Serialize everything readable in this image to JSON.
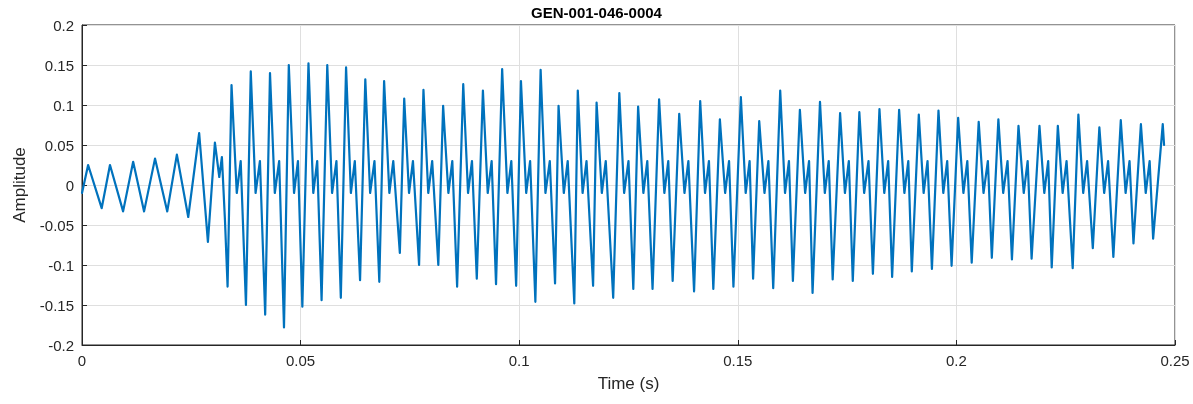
{
  "chart_data": {
    "type": "line",
    "title": "GEN-001-046-0004",
    "xlabel": "Time (s)",
    "ylabel": "Amplitude",
    "xlim": [
      0,
      0.25
    ],
    "xticks": [
      0,
      0.05,
      0.1,
      0.15,
      0.2,
      0.25
    ],
    "ylim": [
      -0.2,
      0.2
    ],
    "yticks": [
      -0.2,
      -0.15,
      -0.1,
      -0.05,
      0,
      0.05,
      0.1,
      0.15,
      0.2
    ],
    "grid": true,
    "marker": "none",
    "line_style": "solid",
    "series": [
      {
        "color": "#0072bd",
        "x": [
          0,
          0.0014,
          0.0045,
          0.0064,
          0.0094,
          0.0117,
          0.0142,
          0.0167,
          0.0195,
          0.0217,
          0.0243,
          0.0268,
          0.0288,
          0.0304,
          0.0314,
          0.032,
          0.0327,
          0.0333,
          0.0342,
          0.0354,
          0.0363,
          0.0375,
          0.0386,
          0.0397,
          0.0407,
          0.0419,
          0.043,
          0.0441,
          0.0451,
          0.0462,
          0.0473,
          0.0485,
          0.0494,
          0.0504,
          0.0518,
          0.0529,
          0.0538,
          0.0548,
          0.0561,
          0.0572,
          0.0582,
          0.0592,
          0.0604,
          0.0615,
          0.0624,
          0.0636,
          0.0648,
          0.0659,
          0.0669,
          0.068,
          0.0691,
          0.0703,
          0.0712,
          0.0727,
          0.0737,
          0.0748,
          0.0757,
          0.0771,
          0.0781,
          0.0792,
          0.0801,
          0.0815,
          0.0826,
          0.0838,
          0.0847,
          0.0858,
          0.0872,
          0.0883,
          0.0892,
          0.0903,
          0.0917,
          0.0928,
          0.0937,
          0.0947,
          0.0961,
          0.0973,
          0.0982,
          0.0993,
          0.1004,
          0.1016,
          0.1025,
          0.1037,
          0.1049,
          0.106,
          0.107,
          0.1082,
          0.109,
          0.1102,
          0.1111,
          0.1126,
          0.1134,
          0.1145,
          0.1154,
          0.1169,
          0.1177,
          0.1189,
          0.1198,
          0.1215,
          0.1229,
          0.124,
          0.125,
          0.1261,
          0.1272,
          0.1284,
          0.1293,
          0.1305,
          0.132,
          0.1332,
          0.1341,
          0.1351,
          0.1366,
          0.1378,
          0.1387,
          0.14,
          0.1414,
          0.1425,
          0.1434,
          0.1444,
          0.1459,
          0.1471,
          0.148,
          0.149,
          0.1507,
          0.1518,
          0.1527,
          0.1535,
          0.1549,
          0.1561,
          0.157,
          0.1581,
          0.1597,
          0.1608,
          0.1617,
          0.1626,
          0.1642,
          0.1654,
          0.1663,
          0.1671,
          0.1688,
          0.1699,
          0.1708,
          0.1717,
          0.1734,
          0.1745,
          0.1754,
          0.1763,
          0.1778,
          0.1789,
          0.1799,
          0.1809,
          0.1824,
          0.1835,
          0.1844,
          0.1853,
          0.1869,
          0.1881,
          0.189,
          0.1898,
          0.1914,
          0.1925,
          0.1934,
          0.1944,
          0.1959,
          0.197,
          0.1979,
          0.1989,
          0.2004,
          0.2016,
          0.2025,
          0.2035,
          0.2051,
          0.2062,
          0.2072,
          0.2081,
          0.2096,
          0.2107,
          0.2117,
          0.2127,
          0.2142,
          0.2154,
          0.2163,
          0.2172,
          0.219,
          0.2201,
          0.221,
          0.2218,
          0.2232,
          0.2243,
          0.2252,
          0.2266,
          0.2279,
          0.229,
          0.2299,
          0.2312,
          0.2327,
          0.2338,
          0.2347,
          0.2359,
          0.2376,
          0.2387,
          0.2396,
          0.2405,
          0.2422,
          0.2433,
          0.2442,
          0.245,
          0.2472,
          0.2475
        ],
        "values": [
          -0.01,
          0.025,
          -0.029,
          0.025,
          -0.033,
          0.029,
          -0.033,
          0.033,
          -0.033,
          0.038,
          -0.04,
          0.065,
          -0.071,
          0.053,
          0.01,
          0.035,
          -0.044,
          -0.127,
          0.125,
          -0.01,
          0.03,
          -0.15,
          0.142,
          -0.01,
          0.03,
          -0.162,
          0.14,
          -0.01,
          0.03,
          -0.178,
          0.15,
          -0.01,
          0.03,
          -0.152,
          0.152,
          -0.01,
          0.03,
          -0.144,
          0.15,
          -0.01,
          0.03,
          -0.141,
          0.147,
          -0.01,
          0.03,
          -0.119,
          0.132,
          -0.01,
          0.03,
          -0.121,
          0.13,
          -0.01,
          0.03,
          -0.085,
          0.108,
          -0.01,
          0.03,
          -0.1,
          0.119,
          -0.01,
          0.03,
          -0.1,
          0.099,
          -0.01,
          0.03,
          -0.127,
          0.126,
          -0.01,
          0.03,
          -0.117,
          0.118,
          -0.01,
          0.03,
          -0.124,
          0.145,
          -0.01,
          0.03,
          -0.126,
          0.13,
          -0.01,
          0.03,
          -0.146,
          0.144,
          -0.01,
          0.03,
          -0.123,
          0.099,
          -0.01,
          0.03,
          -0.148,
          0.118,
          -0.01,
          0.03,
          -0.126,
          0.103,
          -0.01,
          0.03,
          -0.141,
          0.115,
          -0.01,
          0.03,
          -0.13,
          0.098,
          -0.01,
          0.03,
          -0.13,
          0.107,
          -0.01,
          0.03,
          -0.12,
          0.089,
          -0.01,
          0.03,
          -0.133,
          0.105,
          -0.01,
          0.03,
          -0.13,
          0.082,
          -0.01,
          0.03,
          -0.127,
          0.11,
          -0.01,
          0.03,
          -0.117,
          0.08,
          -0.01,
          0.03,
          -0.129,
          0.118,
          -0.01,
          0.03,
          -0.12,
          0.094,
          -0.01,
          0.03,
          -0.135,
          0.104,
          -0.01,
          0.03,
          -0.118,
          0.09,
          -0.01,
          0.03,
          -0.12,
          0.091,
          -0.01,
          0.03,
          -0.111,
          0.095,
          -0.01,
          0.03,
          -0.115,
          0.094,
          -0.01,
          0.03,
          -0.108,
          0.088,
          -0.01,
          0.03,
          -0.105,
          0.093,
          -0.01,
          0.03,
          -0.101,
          0.084,
          -0.01,
          0.03,
          -0.097,
          0.079,
          -0.01,
          0.03,
          -0.091,
          0.082,
          -0.01,
          0.03,
          -0.093,
          0.074,
          -0.01,
          0.03,
          -0.092,
          0.074,
          -0.01,
          0.03,
          -0.103,
          0.074,
          -0.01,
          0.03,
          -0.104,
          0.088,
          -0.01,
          0.03,
          -0.079,
          0.072,
          -0.01,
          0.03,
          -0.09,
          0.081,
          -0.01,
          0.03,
          -0.073,
          0.076,
          -0.01,
          0.03,
          -0.067,
          0.076,
          0.05
        ]
      }
    ]
  }
}
